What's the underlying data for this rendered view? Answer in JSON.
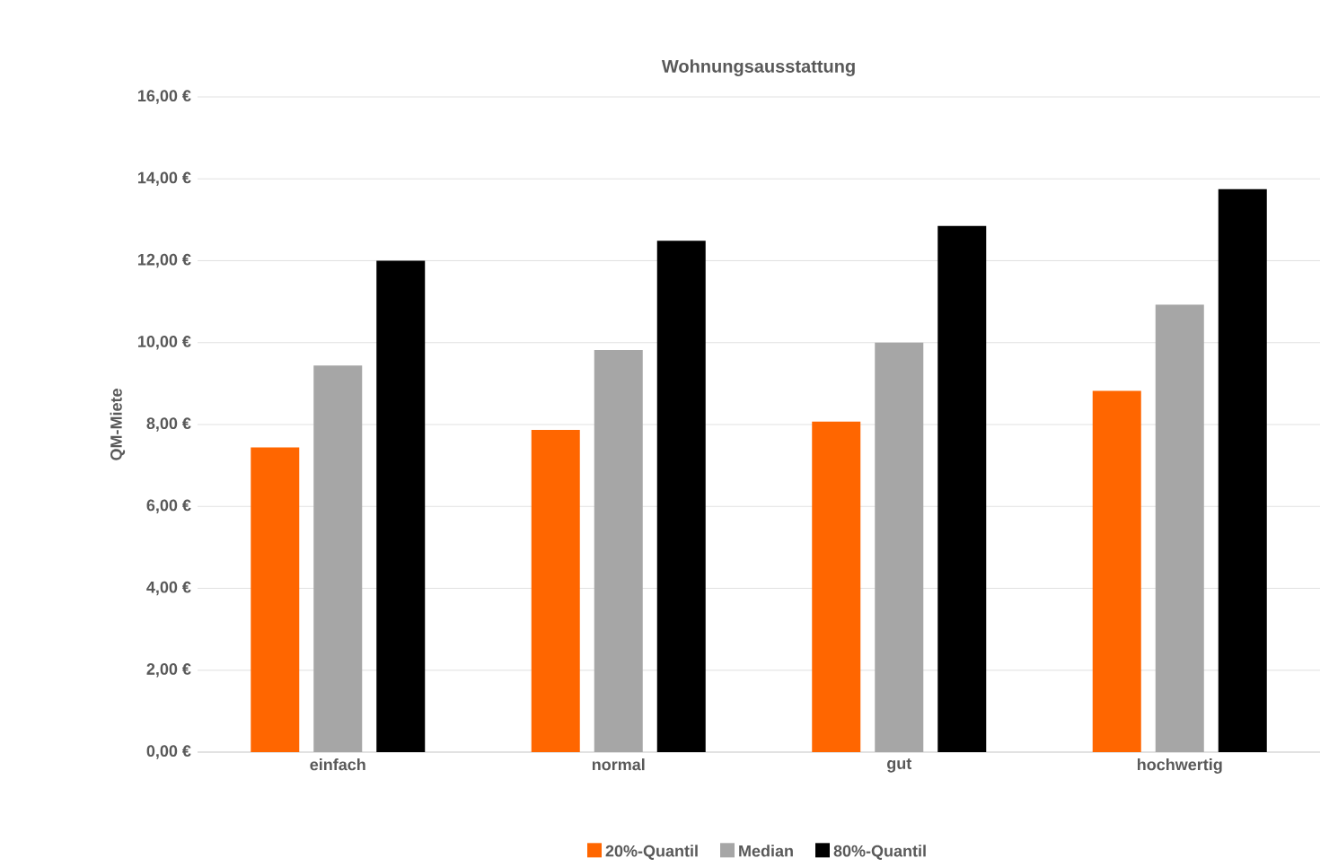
{
  "chart_data": {
    "type": "bar",
    "title": "Wohnungsausstattung",
    "ylabel": "QM-Miete",
    "categories": [
      "einfach",
      "normal",
      "gut",
      "hochwertig"
    ],
    "series": [
      {
        "name": "20%-Quantil",
        "color": "#ff6600",
        "values": [
          7.44,
          7.87,
          8.07,
          8.82
        ]
      },
      {
        "name": "Median",
        "color": "#a6a6a6",
        "values": [
          9.44,
          9.82,
          10.0,
          10.93
        ]
      },
      {
        "name": "80%-Quantil",
        "color": "#000000",
        "values": [
          12.0,
          12.49,
          12.85,
          13.75
        ]
      }
    ],
    "ylim": [
      0,
      16
    ],
    "yticks": [
      {
        "value": 0,
        "label": "0,00 €"
      },
      {
        "value": 2,
        "label": "2,00 €"
      },
      {
        "value": 4,
        "label": "4,00 €"
      },
      {
        "value": 6,
        "label": "6,00 €"
      },
      {
        "value": 8,
        "label": "8,00 €"
      },
      {
        "value": 10,
        "label": "10,00 €"
      },
      {
        "value": 12,
        "label": "12,00 €"
      },
      {
        "value": 14,
        "label": "14,00 €"
      },
      {
        "value": 16,
        "label": "16,00 €"
      }
    ],
    "grid": "y",
    "legend": "bottom"
  }
}
